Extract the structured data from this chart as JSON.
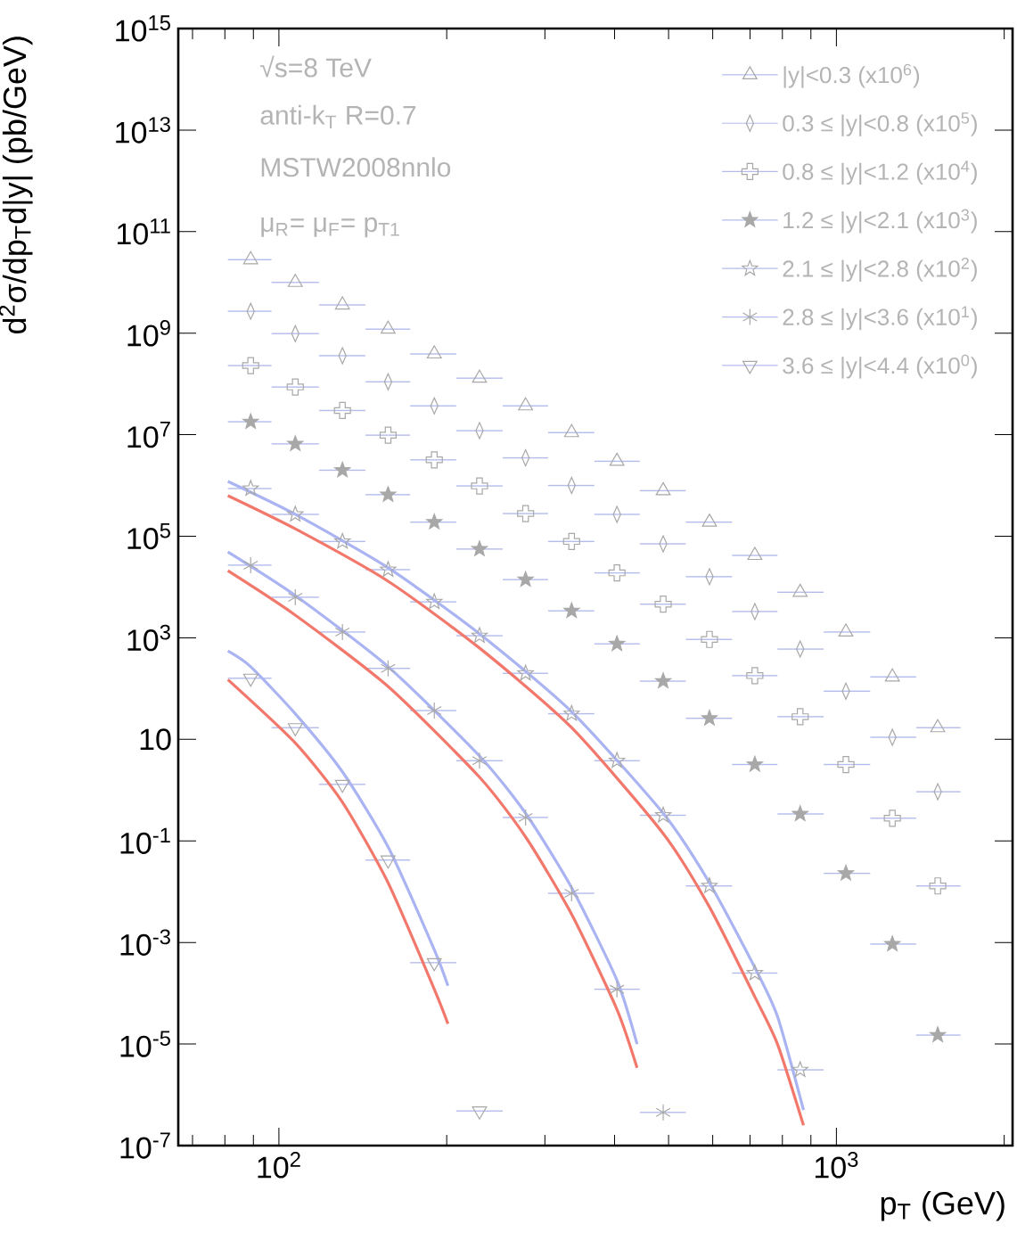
{
  "chart_data": {
    "type": "scatter",
    "xlabel": "p$_{T}$ (GeV)",
    "ylabel": "d$^{2}$σ/dp$_{T}$d|y| (pb/GeV)",
    "annotations": [
      "√s=8 TeV",
      "anti-k$_{T}$ R=0.7",
      "MSTW2008nnlo",
      "μ$_{R}$= μ$_{F}$= p$_{T1}$"
    ],
    "log": "xy",
    "xlim": [
      66,
      2070
    ],
    "ylim": [
      1e-07,
      1000000000000000.0
    ],
    "xticks": [
      {
        "value": 70,
        "label": null
      },
      {
        "value": 80,
        "label": null
      },
      {
        "value": 90,
        "label": null
      },
      {
        "value": 100,
        "label": "10$^{2}$"
      },
      {
        "value": 200,
        "label": null
      },
      {
        "value": 300,
        "label": null
      },
      {
        "value": 400,
        "label": null
      },
      {
        "value": 500,
        "label": null
      },
      {
        "value": 600,
        "label": null
      },
      {
        "value": 700,
        "label": null
      },
      {
        "value": 800,
        "label": null
      },
      {
        "value": 900,
        "label": null
      },
      {
        "value": 1000,
        "label": "10$^{3}$"
      },
      {
        "value": 2000,
        "label": null
      }
    ],
    "yticks": [
      {
        "value": 1e-07,
        "label": "10$^{-7}$"
      },
      {
        "value": 1e-05,
        "label": "10$^{-5}$"
      },
      {
        "value": 0.001,
        "label": "10$^{-3}$"
      },
      {
        "value": 0.1,
        "label": "10$^{-1}$"
      },
      10,
      {
        "value": 1000.0,
        "label": "10$^{3}$"
      },
      {
        "value": 100000.0,
        "label": "10$^{5}$"
      },
      {
        "value": 10000000.0,
        "label": "10$^{7}$"
      },
      {
        "value": 1000000000.0,
        "label": "10$^{9}$"
      },
      {
        "value": 100000000000.0,
        "label": "10$^{11}$"
      },
      {
        "value": 10000000000000.0,
        "label": "10$^{13}$"
      },
      {
        "value": 1000000000000000.0,
        "label": "10$^{15}$"
      }
    ],
    "legend": "top right",
    "series": [
      {
        "name": "|y|<0.3 (x10$^{6}$)",
        "color": "#a8a8a8",
        "marker": "triangle",
        "x": [
          89,
          107,
          130,
          157,
          190,
          229,
          277,
          335,
          404,
          489,
          592,
          714,
          861,
          1040,
          1260,
          1520
        ],
        "values": [
          28000000000.0,
          10000000000.0,
          3600000000.0,
          1200000000.0,
          390000000.0,
          130000000.0,
          37000000.0,
          11000000.0,
          3000000.0,
          790000.0,
          190000.0,
          42000.0,
          7900.0,
          1300.0,
          170,
          17
        ],
        "xerrors": [
          [
            81,
            97
          ],
          [
            97,
            118
          ],
          [
            118,
            143
          ],
          [
            143,
            172
          ],
          [
            172,
            208
          ],
          [
            208,
            252
          ],
          [
            252,
            304
          ],
          [
            304,
            368
          ],
          [
            368,
            444
          ],
          [
            444,
            537
          ],
          [
            537,
            650
          ],
          [
            650,
            784
          ],
          [
            784,
            949
          ],
          [
            949,
            1150
          ],
          [
            1150,
            1390
          ],
          [
            1390,
            1670
          ]
        ]
      },
      {
        "name": "0.3 ≤ |y|<0.8 (x10$^{5}$)",
        "color": "#a8a8a8",
        "marker": "diamond",
        "x": [
          89,
          107,
          130,
          157,
          190,
          229,
          277,
          335,
          404,
          489,
          592,
          714,
          861,
          1040,
          1260,
          1520
        ],
        "values": [
          2700000000.0,
          980000000.0,
          360000000.0,
          110000000.0,
          37000000.0,
          12000000.0,
          3500000.0,
          1000000.0,
          270000.0,
          71000.0,
          16000.0,
          3300.0,
          600,
          89,
          11,
          0.93
        ],
        "xerrors": [
          [
            81,
            97
          ],
          [
            97,
            118
          ],
          [
            118,
            143
          ],
          [
            143,
            172
          ],
          [
            172,
            208
          ],
          [
            208,
            252
          ],
          [
            252,
            304
          ],
          [
            304,
            368
          ],
          [
            368,
            444
          ],
          [
            444,
            537
          ],
          [
            537,
            650
          ],
          [
            650,
            784
          ],
          [
            784,
            949
          ],
          [
            949,
            1150
          ],
          [
            1150,
            1390
          ],
          [
            1390,
            1670
          ]
        ]
      },
      {
        "name": "0.8 ≤ |y|<1.2 (x10$^{4}$)",
        "color": "#a8a8a8",
        "marker": "cross-open",
        "x": [
          89,
          107,
          130,
          157,
          190,
          229,
          277,
          335,
          404,
          489,
          592,
          714,
          861,
          1040,
          1260,
          1520
        ],
        "values": [
          230000000.0,
          87000000.0,
          30000000.0,
          9800000.0,
          3200000.0,
          980000.0,
          280000.0,
          79000.0,
          19000.0,
          4600.0,
          930,
          180,
          28,
          3.2,
          0.28,
          0.013
        ],
        "xerrors": [
          [
            81,
            97
          ],
          [
            97,
            118
          ],
          [
            118,
            143
          ],
          [
            143,
            172
          ],
          [
            172,
            208
          ],
          [
            208,
            252
          ],
          [
            252,
            304
          ],
          [
            304,
            368
          ],
          [
            368,
            444
          ],
          [
            444,
            537
          ],
          [
            537,
            650
          ],
          [
            650,
            784
          ],
          [
            784,
            949
          ],
          [
            949,
            1150
          ],
          [
            1150,
            1390
          ],
          [
            1390,
            1670
          ]
        ]
      },
      {
        "name": "1.2 ≤ |y|<2.1 (x10$^{3}$)",
        "color": "#a8a8a8",
        "marker": "star",
        "x": [
          89,
          107,
          130,
          157,
          190,
          229,
          277,
          335,
          404,
          489,
          592,
          714,
          861,
          1040,
          1260,
          1520
        ],
        "values": [
          18000000.0,
          6600000.0,
          2000000.0,
          660000.0,
          190000.0,
          56000.0,
          14000.0,
          3400.0,
          760,
          140,
          26,
          3.2,
          0.34,
          0.023,
          0.00093,
          1.5e-05
        ],
        "xerrors": [
          [
            81,
            97
          ],
          [
            97,
            118
          ],
          [
            118,
            143
          ],
          [
            143,
            172
          ],
          [
            172,
            208
          ],
          [
            208,
            252
          ],
          [
            252,
            304
          ],
          [
            304,
            368
          ],
          [
            368,
            444
          ],
          [
            444,
            537
          ],
          [
            537,
            650
          ],
          [
            650,
            784
          ],
          [
            784,
            949
          ],
          [
            949,
            1150
          ],
          [
            1150,
            1390
          ],
          [
            1390,
            1670
          ]
        ]
      },
      {
        "name": "2.1 ≤ |y|<2.8 (x10$^{2}$)",
        "color": "#a8a8a8",
        "marker": "star-open",
        "x": [
          89,
          107,
          130,
          157,
          190,
          229,
          277,
          335,
          404,
          489,
          592,
          714,
          861
        ],
        "values": [
          870000.0,
          270000.0,
          79000.0,
          22000.0,
          5100.0,
          1100.0,
          200,
          32,
          3.8,
          0.32,
          0.013,
          0.00025,
          3.1e-06
        ],
        "xerrors": [
          [
            81,
            97
          ],
          [
            97,
            118
          ],
          [
            118,
            143
          ],
          [
            143,
            172
          ],
          [
            172,
            208
          ],
          [
            208,
            252
          ],
          [
            252,
            304
          ],
          [
            304,
            368
          ],
          [
            368,
            444
          ],
          [
            444,
            537
          ],
          [
            537,
            650
          ],
          [
            650,
            784
          ],
          [
            784,
            949
          ]
        ]
      },
      {
        "name": "2.8 ≤ |y|<3.6 (x10$^{1}$)",
        "color": "#a8a8a8",
        "marker": "cross",
        "x": [
          89,
          107,
          130,
          157,
          190,
          229,
          277,
          335,
          404,
          489
        ],
        "values": [
          27000.0,
          6300.0,
          1300.0,
          250,
          37,
          3.8,
          0.29,
          0.0093,
          0.00012,
          4.5e-07
        ],
        "xerrors": [
          [
            81,
            97
          ],
          [
            97,
            118
          ],
          [
            118,
            143
          ],
          [
            143,
            172
          ],
          [
            172,
            208
          ],
          [
            208,
            252
          ],
          [
            252,
            304
          ],
          [
            304,
            368
          ],
          [
            368,
            444
          ],
          [
            444,
            537
          ]
        ]
      },
      {
        "name": "3.6 ≤ |y|<4.4 (x10$^{0}$)",
        "color": "#a8a8a8",
        "marker": "triangle-down",
        "x": [
          89,
          107,
          130,
          157,
          190,
          229
        ],
        "values": [
          160,
          17,
          1.3,
          0.042,
          0.0004,
          4.8e-07
        ],
        "xerrors": [
          [
            81,
            97
          ],
          [
            97,
            118
          ],
          [
            118,
            143
          ],
          [
            143,
            172
          ],
          [
            172,
            208
          ],
          [
            208,
            252
          ]
        ]
      },
      {
        "type": "line",
        "color": "#aab4f2",
        "marker": "none",
        "x": [
          81,
          107,
          157,
          229,
          335,
          489,
          592,
          714,
          784,
          873
        ],
        "values": [
          1200000.0,
          270000.0,
          24000.0,
          1200.0,
          35,
          0.35,
          0.015,
          0.00032,
          3.5e-05,
          5e-07
        ]
      },
      {
        "type": "line",
        "color": "#f2786c",
        "marker": "none",
        "x": [
          81,
          107,
          157,
          229,
          335,
          489,
          592,
          714,
          784,
          873
        ],
        "values": [
          630000.0,
          140000.0,
          13000.0,
          630,
          17,
          0.14,
          0.005,
          8.5e-05,
          1e-05,
          2.5e-07
        ]
      },
      {
        "type": "line",
        "color": "#aab4f2",
        "marker": "none",
        "x": [
          81,
          107,
          157,
          229,
          277,
          335,
          404,
          439
        ],
        "values": [
          49000.0,
          6800.0,
          270,
          4.7,
          0.35,
          0.012,
          0.00018,
          1e-05
        ]
      },
      {
        "type": "line",
        "color": "#f2786c",
        "marker": "none",
        "x": [
          81,
          107,
          157,
          229,
          277,
          335,
          404,
          439
        ],
        "values": [
          21000.0,
          2800.0,
          110,
          1.8,
          0.12,
          0.0036,
          4.8e-05,
          3.4e-06
        ]
      },
      {
        "type": "line",
        "color": "#aab4f2",
        "marker": "none",
        "x": [
          81,
          89,
          107,
          130,
          157,
          190,
          201
        ],
        "values": [
          550,
          270,
          32,
          2.3,
          0.076,
          0.00072,
          0.00014
        ]
      },
      {
        "type": "line",
        "color": "#f2786c",
        "marker": "none",
        "x": [
          81,
          107,
          130,
          157,
          190,
          201
        ],
        "values": [
          150,
          8.5,
          0.58,
          0.015,
          0.00012,
          2.5e-05
        ]
      }
    ]
  }
}
